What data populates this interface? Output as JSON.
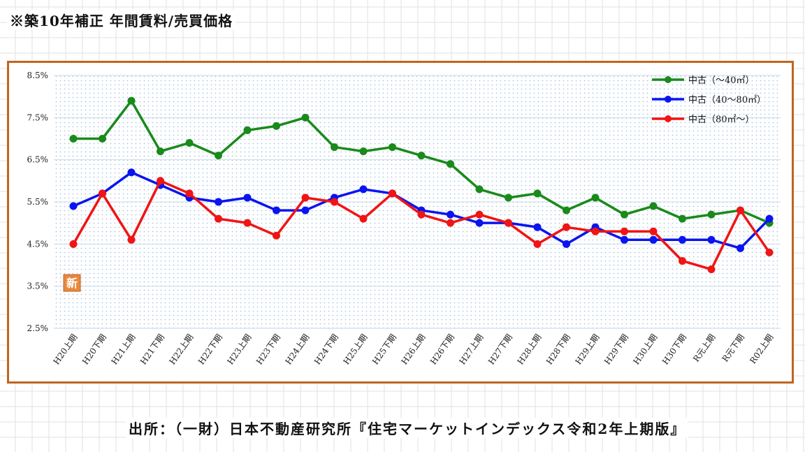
{
  "title": "※築10年補正 年間賃料/売買価格",
  "source": "出所：（一財）日本不動産研究所『住宅マーケットインデックス令和2年上期版』",
  "badge": "新",
  "chart_data": {
    "type": "line",
    "categories": [
      "H20上期",
      "H20下期",
      "H21上期",
      "H21下期",
      "H22上期",
      "H22下期",
      "H23上期",
      "H23下期",
      "H24上期",
      "H24下期",
      "H25上期",
      "H25下期",
      "H26上期",
      "H26下期",
      "H27上期",
      "H27下期",
      "H28上期",
      "H28下期",
      "H29上期",
      "H29下期",
      "H30上期",
      "H30下期",
      "R元上期",
      "R元下期",
      "R02上期"
    ],
    "y_ticks": [
      "2.5%",
      "3.5%",
      "4.5%",
      "5.5%",
      "6.5%",
      "7.5%",
      "8.5%"
    ],
    "ylim": [
      2.5,
      8.5
    ],
    "grid": "dotted",
    "legend_position": "top-right",
    "series": [
      {
        "name": "中古（～40㎡）",
        "color": "#1a8a1a",
        "values": [
          7.0,
          7.0,
          7.9,
          6.7,
          6.9,
          6.6,
          7.2,
          7.3,
          7.5,
          6.8,
          6.7,
          6.8,
          6.6,
          6.4,
          5.8,
          5.6,
          5.7,
          5.3,
          5.6,
          5.2,
          5.4,
          5.1,
          5.2,
          5.3,
          5.0
        ]
      },
      {
        "name": "中古（40～80㎡）",
        "color": "#0a14f0",
        "values": [
          5.4,
          5.7,
          6.2,
          5.9,
          5.6,
          5.5,
          5.6,
          5.3,
          5.3,
          5.6,
          5.8,
          5.7,
          5.3,
          5.2,
          5.0,
          5.0,
          4.9,
          4.5,
          4.9,
          4.6,
          4.6,
          4.6,
          4.6,
          4.4,
          5.1
        ]
      },
      {
        "name": "中古（80㎡～）",
        "color": "#f01414",
        "values": [
          4.5,
          5.7,
          4.6,
          6.0,
          5.7,
          5.1,
          5.0,
          4.7,
          5.6,
          5.5,
          5.1,
          5.7,
          5.2,
          5.0,
          5.2,
          5.0,
          4.5,
          4.9,
          4.8,
          4.8,
          4.8,
          4.1,
          3.9,
          5.3,
          4.3
        ]
      }
    ]
  }
}
